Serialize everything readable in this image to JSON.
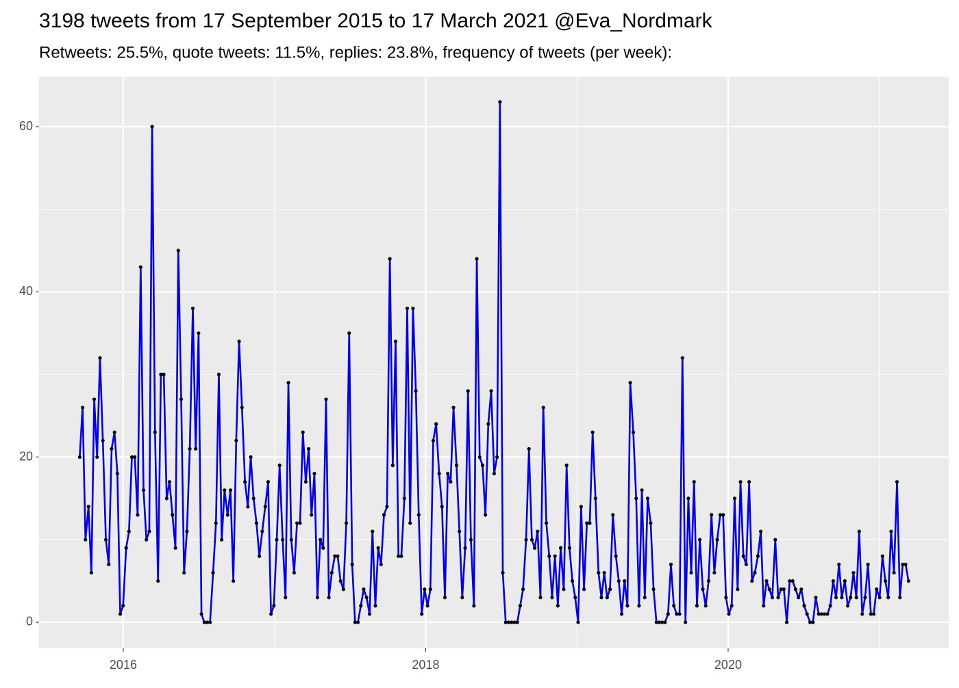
{
  "chart_data": {
    "type": "line",
    "title": "3198 tweets from 17 September 2015 to 17 March 2021 @Eva_Nordmark",
    "subtitle": "Retweets: 25.5%, quote tweets: 11.5%, replies: 23.8%, frequency of tweets (per week):",
    "x": [
      2015.712,
      2015.731,
      2015.75,
      2015.77,
      2015.789,
      2015.808,
      2015.827,
      2015.846,
      2015.865,
      2015.885,
      2015.904,
      2015.923,
      2015.942,
      2015.961,
      2015.98,
      2015.999,
      2016.019,
      2016.038,
      2016.057,
      2016.076,
      2016.095,
      2016.115,
      2016.134,
      2016.153,
      2016.172,
      2016.191,
      2016.21,
      2016.23,
      2016.249,
      2016.268,
      2016.287,
      2016.306,
      2016.325,
      2016.345,
      2016.364,
      2016.383,
      2016.402,
      2016.421,
      2016.44,
      2016.46,
      2016.479,
      2016.498,
      2016.517,
      2016.536,
      2016.555,
      2016.574,
      2016.594,
      2016.613,
      2016.632,
      2016.651,
      2016.67,
      2016.69,
      2016.709,
      2016.728,
      2016.747,
      2016.766,
      2016.785,
      2016.805,
      2016.824,
      2016.843,
      2016.862,
      2016.881,
      2016.9,
      2016.919,
      2016.939,
      2016.958,
      2016.977,
      2016.996,
      2017.015,
      2017.034,
      2017.054,
      2017.073,
      2017.092,
      2017.111,
      2017.13,
      2017.149,
      2017.169,
      2017.188,
      2017.207,
      2017.226,
      2017.245,
      2017.264,
      2017.284,
      2017.303,
      2017.322,
      2017.341,
      2017.36,
      2017.379,
      2017.399,
      2017.418,
      2017.437,
      2017.456,
      2017.475,
      2017.494,
      2017.514,
      2017.533,
      2017.552,
      2017.571,
      2017.59,
      2017.609,
      2017.629,
      2017.648,
      2017.667,
      2017.686,
      2017.705,
      2017.724,
      2017.744,
      2017.763,
      2017.782,
      2017.801,
      2017.82,
      2017.839,
      2017.859,
      2017.878,
      2017.897,
      2017.916,
      2017.935,
      2017.954,
      2017.974,
      2017.993,
      2018.012,
      2018.031,
      2018.05,
      2018.069,
      2018.089,
      2018.108,
      2018.127,
      2018.146,
      2018.165,
      2018.184,
      2018.204,
      2018.223,
      2018.242,
      2018.261,
      2018.28,
      2018.299,
      2018.319,
      2018.338,
      2018.357,
      2018.376,
      2018.395,
      2018.414,
      2018.433,
      2018.453,
      2018.472,
      2018.491,
      2018.51,
      2018.529,
      2018.548,
      2018.568,
      2018.587,
      2018.606,
      2018.625,
      2018.644,
      2018.664,
      2018.683,
      2018.702,
      2018.721,
      2018.74,
      2018.759,
      2018.778,
      2018.798,
      2018.817,
      2018.836,
      2018.855,
      2018.874,
      2018.893,
      2018.913,
      2018.932,
      2018.951,
      2018.97,
      2018.989,
      2019.008,
      2019.028,
      2019.047,
      2019.066,
      2019.085,
      2019.104,
      2019.123,
      2019.143,
      2019.162,
      2019.181,
      2019.2,
      2019.219,
      2019.238,
      2019.258,
      2019.277,
      2019.296,
      2019.315,
      2019.334,
      2019.353,
      2019.373,
      2019.392,
      2019.411,
      2019.43,
      2019.449,
      2019.468,
      2019.488,
      2019.507,
      2019.526,
      2019.545,
      2019.564,
      2019.583,
      2019.603,
      2019.622,
      2019.641,
      2019.66,
      2019.679,
      2019.698,
      2019.718,
      2019.737,
      2019.756,
      2019.775,
      2019.794,
      2019.813,
      2019.833,
      2019.852,
      2019.871,
      2019.89,
      2019.909,
      2019.928,
      2019.948,
      2019.967,
      2019.986,
      2020.005,
      2020.024,
      2020.043,
      2020.063,
      2020.082,
      2020.101,
      2020.12,
      2020.139,
      2020.158,
      2020.177,
      2020.197,
      2020.216,
      2020.235,
      2020.254,
      2020.273,
      2020.292,
      2020.312,
      2020.331,
      2020.35,
      2020.369,
      2020.388,
      2020.407,
      2020.427,
      2020.446,
      2020.465,
      2020.484,
      2020.503,
      2020.522,
      2020.542,
      2020.561,
      2020.58,
      2020.599,
      2020.618,
      2020.637,
      2020.657,
      2020.676,
      2020.695,
      2020.714,
      2020.733,
      2020.752,
      2020.772,
      2020.791,
      2020.81,
      2020.829,
      2020.848,
      2020.867,
      2020.887,
      2020.906,
      2020.925,
      2020.944,
      2020.963,
      2020.982,
      2021.002,
      2021.021,
      2021.04,
      2021.059,
      2021.078,
      2021.097,
      2021.117,
      2021.136,
      2021.155,
      2021.174,
      2021.193
    ],
    "series": [
      {
        "color": "#0000ee",
        "point_color": "#000000",
        "values": [
          20,
          26,
          10,
          14,
          6,
          27,
          20,
          32,
          22,
          10,
          7,
          21,
          23,
          18,
          1,
          2,
          9,
          11,
          20,
          20,
          13,
          43,
          16,
          10,
          11,
          60,
          23,
          5,
          30,
          30,
          15,
          17,
          13,
          9,
          45,
          27,
          6,
          11,
          21,
          38,
          21,
          35,
          1,
          0,
          0,
          0,
          6,
          12,
          30,
          10,
          16,
          13,
          16,
          5,
          22,
          34,
          26,
          17,
          14,
          20,
          15,
          12,
          8,
          11,
          14,
          17,
          1,
          2,
          10,
          19,
          10,
          3,
          29,
          10,
          6,
          12,
          12,
          23,
          17,
          21,
          13,
          18,
          3,
          10,
          9,
          27,
          3,
          6,
          8,
          8,
          5,
          4,
          12,
          35,
          7,
          0,
          0,
          2,
          4,
          3,
          1,
          11,
          2,
          9,
          7,
          13,
          14,
          44,
          19,
          34,
          8,
          8,
          15,
          38,
          12,
          38,
          28,
          13,
          1,
          4,
          2,
          4,
          22,
          24,
          18,
          14,
          3,
          18,
          17,
          26,
          19,
          11,
          3,
          9,
          28,
          10,
          2,
          44,
          20,
          19,
          13,
          24,
          28,
          18,
          20,
          63,
          6,
          0,
          0,
          0,
          0,
          0,
          2,
          4,
          10,
          21,
          10,
          9,
          11,
          3,
          26,
          12,
          8,
          3,
          8,
          2,
          9,
          4,
          19,
          9,
          5,
          3,
          0,
          14,
          4,
          12,
          12,
          23,
          15,
          6,
          3,
          6,
          3,
          4,
          13,
          8,
          5,
          1,
          5,
          2,
          29,
          23,
          15,
          2,
          16,
          3,
          15,
          12,
          4,
          0,
          0,
          0,
          0,
          1,
          7,
          2,
          1,
          1,
          32,
          0,
          15,
          6,
          17,
          2,
          10,
          4,
          2,
          5,
          13,
          6,
          10,
          13,
          13,
          3,
          1,
          2,
          15,
          4,
          17,
          8,
          7,
          17,
          5,
          6,
          8,
          11,
          2,
          5,
          4,
          3,
          10,
          3,
          4,
          4,
          0,
          5,
          5,
          4,
          3,
          4,
          2,
          1,
          0,
          0,
          3,
          1,
          1,
          1,
          1,
          2,
          5,
          3,
          7,
          3,
          5,
          2,
          3,
          6,
          3,
          11,
          1,
          3,
          7,
          1,
          1,
          4,
          3,
          8,
          5,
          3,
          11,
          6,
          17,
          3,
          7,
          7,
          5
        ]
      }
    ],
    "xlim": [
      2015.443,
      2021.459
    ],
    "ylim": [
      -3.15,
      66.05
    ],
    "xticks": [
      2016,
      2018,
      2020
    ],
    "yticks": [
      0,
      20,
      40,
      60
    ],
    "x_minor_ticks": [
      2017,
      2019,
      2021
    ],
    "y_minor_ticks": [
      10,
      30,
      50
    ],
    "grid": true
  }
}
